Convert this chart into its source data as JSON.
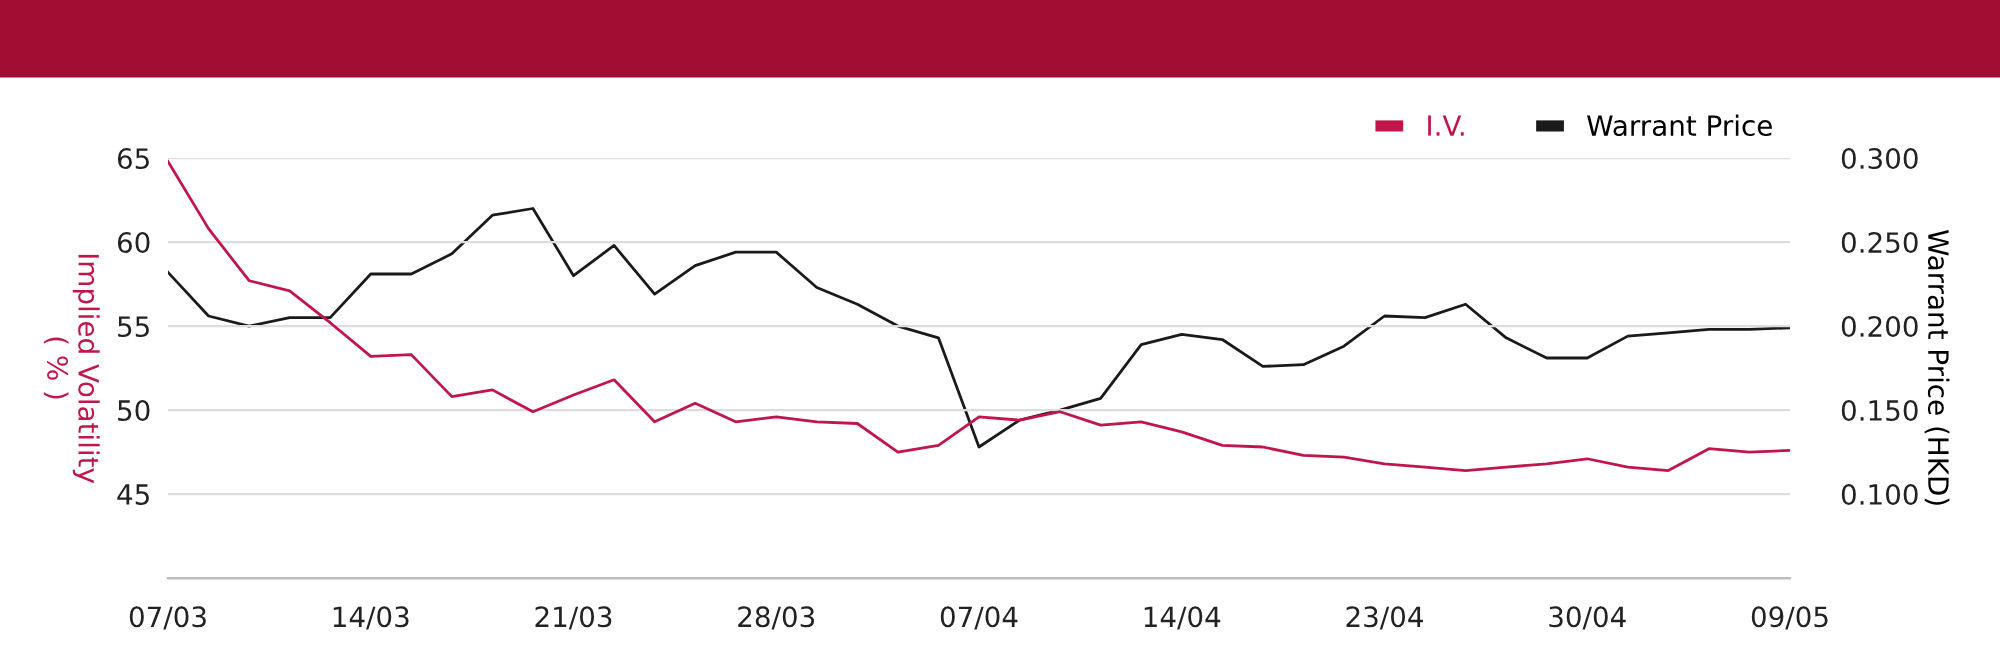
{
  "chart_data": {
    "type": "line",
    "categories": [
      "07/03",
      null,
      null,
      null,
      null,
      "14/03",
      null,
      null,
      null,
      null,
      "21/03",
      null,
      null,
      null,
      null,
      "28/03",
      null,
      null,
      null,
      null,
      "07/04",
      null,
      null,
      null,
      null,
      "14/04",
      null,
      null,
      null,
      null,
      "23/04",
      null,
      null,
      null,
      null,
      "30/04",
      null,
      null,
      null,
      null,
      "09/05"
    ],
    "series": [
      {
        "name": "I.V.",
        "color": "#c0164a",
        "values": [
          64.8,
          60.8,
          57.7,
          57.1,
          55.2,
          53.2,
          53.3,
          50.8,
          51.2,
          49.9,
          50.9,
          51.8,
          49.3,
          50.4,
          49.3,
          49.6,
          49.3,
          49.2,
          47.5,
          47.9,
          49.6,
          49.4,
          49.9,
          49.1,
          49.3,
          48.7,
          47.9,
          47.8,
          47.3,
          47.2,
          46.8,
          46.6,
          46.4,
          46.6,
          46.8,
          47.1,
          46.6,
          46.4,
          47.7,
          47.5,
          47.6
        ]
      },
      {
        "name": "Warrant Price",
        "color": "#1a1a1a",
        "axis": "y2",
        "values": [
          0.232,
          0.206,
          0.2,
          0.205,
          0.205,
          0.231,
          0.231,
          0.243,
          0.266,
          0.27,
          0.23,
          0.248,
          0.219,
          0.236,
          0.244,
          0.244,
          0.223,
          0.213,
          0.2,
          0.193,
          0.128,
          0.144,
          0.15,
          0.157,
          0.189,
          0.195,
          0.192,
          0.176,
          0.177,
          0.188,
          0.206,
          0.205,
          0.213,
          0.193,
          0.181,
          0.181,
          0.194,
          0.196,
          0.198,
          0.198,
          0.199
        ]
      }
    ],
    "ylabel": "Implied Volatility\n( % )",
    "y2label": "Warrant Price (HKD)",
    "ylim": [
      40,
      65
    ],
    "yticks": [
      45,
      50,
      55,
      60,
      65
    ],
    "y2lim": [
      0.05,
      0.3
    ],
    "y2ticks": [
      {
        "value": 0.1,
        "label": "0.100"
      },
      {
        "value": 0.15,
        "label": "0.150"
      },
      {
        "value": 0.2,
        "label": "0.200"
      },
      {
        "value": 0.25,
        "label": "0.250"
      },
      {
        "value": 0.3,
        "label": "0.300"
      }
    ],
    "grid": "y",
    "legend": "top right",
    "marker": "none",
    "line_style": "solid"
  }
}
